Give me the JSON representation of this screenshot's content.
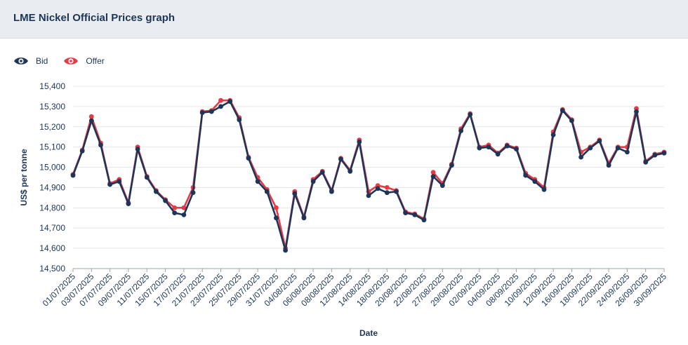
{
  "header": {
    "title": "LME Nickel Official Prices graph"
  },
  "legend": [
    {
      "label": "Bid",
      "icon": "eye-icon",
      "color": "#1d3557"
    },
    {
      "label": "Offer",
      "icon": "eye-icon",
      "color": "#e63946"
    }
  ],
  "chart_data": {
    "type": "line",
    "xlabel": "Date",
    "ylabel": "US$ per tonne",
    "ylim": [
      14500,
      15400
    ],
    "yticks": [
      14500,
      14600,
      14700,
      14800,
      14900,
      15000,
      15100,
      15200,
      15300,
      15400
    ],
    "ytick_labels": [
      "14,500",
      "14,600",
      "14,700",
      "14,800",
      "14,900",
      "15,000",
      "15,100",
      "15,200",
      "15,300",
      "15,400"
    ],
    "grid": true,
    "legend_position": "top-left",
    "x": [
      "01/07/2025",
      "02/07/2025",
      "03/07/2025",
      "04/07/2025",
      "07/07/2025",
      "08/07/2025",
      "09/07/2025",
      "10/07/2025",
      "11/07/2025",
      "14/07/2025",
      "15/07/2025",
      "16/07/2025",
      "17/07/2025",
      "18/07/2025",
      "21/07/2025",
      "22/07/2025",
      "23/07/2025",
      "24/07/2025",
      "25/07/2025",
      "28/07/2025",
      "29/07/2025",
      "30/07/2025",
      "31/07/2025",
      "01/08/2025",
      "04/08/2025",
      "05/08/2025",
      "06/08/2025",
      "07/08/2025",
      "08/08/2025",
      "11/08/2025",
      "12/08/2025",
      "13/08/2025",
      "14/08/2025",
      "15/08/2025",
      "18/08/2025",
      "19/08/2025",
      "20/08/2025",
      "21/08/2025",
      "22/08/2025",
      "26/08/2025",
      "27/08/2025",
      "28/08/2025",
      "29/08/2025",
      "01/09/2025",
      "02/09/2025",
      "03/09/2025",
      "04/09/2025",
      "05/09/2025",
      "08/09/2025",
      "09/09/2025",
      "10/09/2025",
      "11/09/2025",
      "12/09/2025",
      "15/09/2025",
      "16/09/2025",
      "17/09/2025",
      "18/09/2025",
      "19/09/2025",
      "22/09/2025",
      "23/09/2025",
      "24/09/2025",
      "25/09/2025",
      "26/09/2025",
      "29/09/2025",
      "30/09/2025"
    ],
    "x_tick_labels": [
      "01/07/2025",
      "03/07/2025",
      "07/07/2025",
      "09/07/2025",
      "11/07/2025",
      "15/07/2025",
      "17/07/2025",
      "21/07/2025",
      "23/07/2025",
      "25/07/2025",
      "29/07/2025",
      "31/07/2025",
      "04/08/2025",
      "06/08/2025",
      "08/08/2025",
      "12/08/2025",
      "14/08/2025",
      "18/08/2025",
      "20/08/2025",
      "22/08/2025",
      "27/08/2025",
      "29/08/2025",
      "02/09/2025",
      "04/09/2025",
      "08/09/2025",
      "10/09/2025",
      "12/09/2025",
      "16/09/2025",
      "18/09/2025",
      "22/09/2025",
      "24/09/2025",
      "26/09/2025",
      "30/09/2025"
    ],
    "series": [
      {
        "name": "Bid",
        "color": "#1d3557",
        "values": [
          14960,
          15080,
          15230,
          15110,
          14915,
          14930,
          14820,
          15090,
          14950,
          14880,
          14835,
          14775,
          14765,
          14875,
          15270,
          15275,
          15300,
          15325,
          15235,
          15045,
          14930,
          14880,
          14750,
          14590,
          14870,
          14750,
          14930,
          14975,
          14880,
          15040,
          14980,
          15125,
          14860,
          14895,
          14875,
          14880,
          14775,
          14765,
          14740,
          14955,
          14910,
          15010,
          15180,
          15260,
          15095,
          15100,
          15065,
          15105,
          15090,
          14960,
          14930,
          14890,
          15160,
          15280,
          15230,
          15050,
          15095,
          15130,
          15010,
          15095,
          15075,
          15275,
          15025,
          15060,
          15070
        ]
      },
      {
        "name": "Offer",
        "color": "#e63946",
        "values": [
          14965,
          15085,
          15250,
          15120,
          14920,
          14940,
          14825,
          15100,
          14955,
          14885,
          14840,
          14800,
          14800,
          14900,
          15275,
          15280,
          15330,
          15330,
          15245,
          15050,
          14950,
          14890,
          14800,
          14600,
          14880,
          14755,
          14940,
          14980,
          14885,
          15045,
          14985,
          15135,
          14880,
          14910,
          14900,
          14885,
          14780,
          14770,
          14745,
          14975,
          14920,
          15015,
          15190,
          15265,
          15100,
          15110,
          15070,
          15110,
          15095,
          14970,
          14940,
          14900,
          15175,
          15285,
          15235,
          15075,
          15100,
          15135,
          15020,
          15100,
          15100,
          15290,
          15030,
          15065,
          15075
        ]
      }
    ]
  }
}
